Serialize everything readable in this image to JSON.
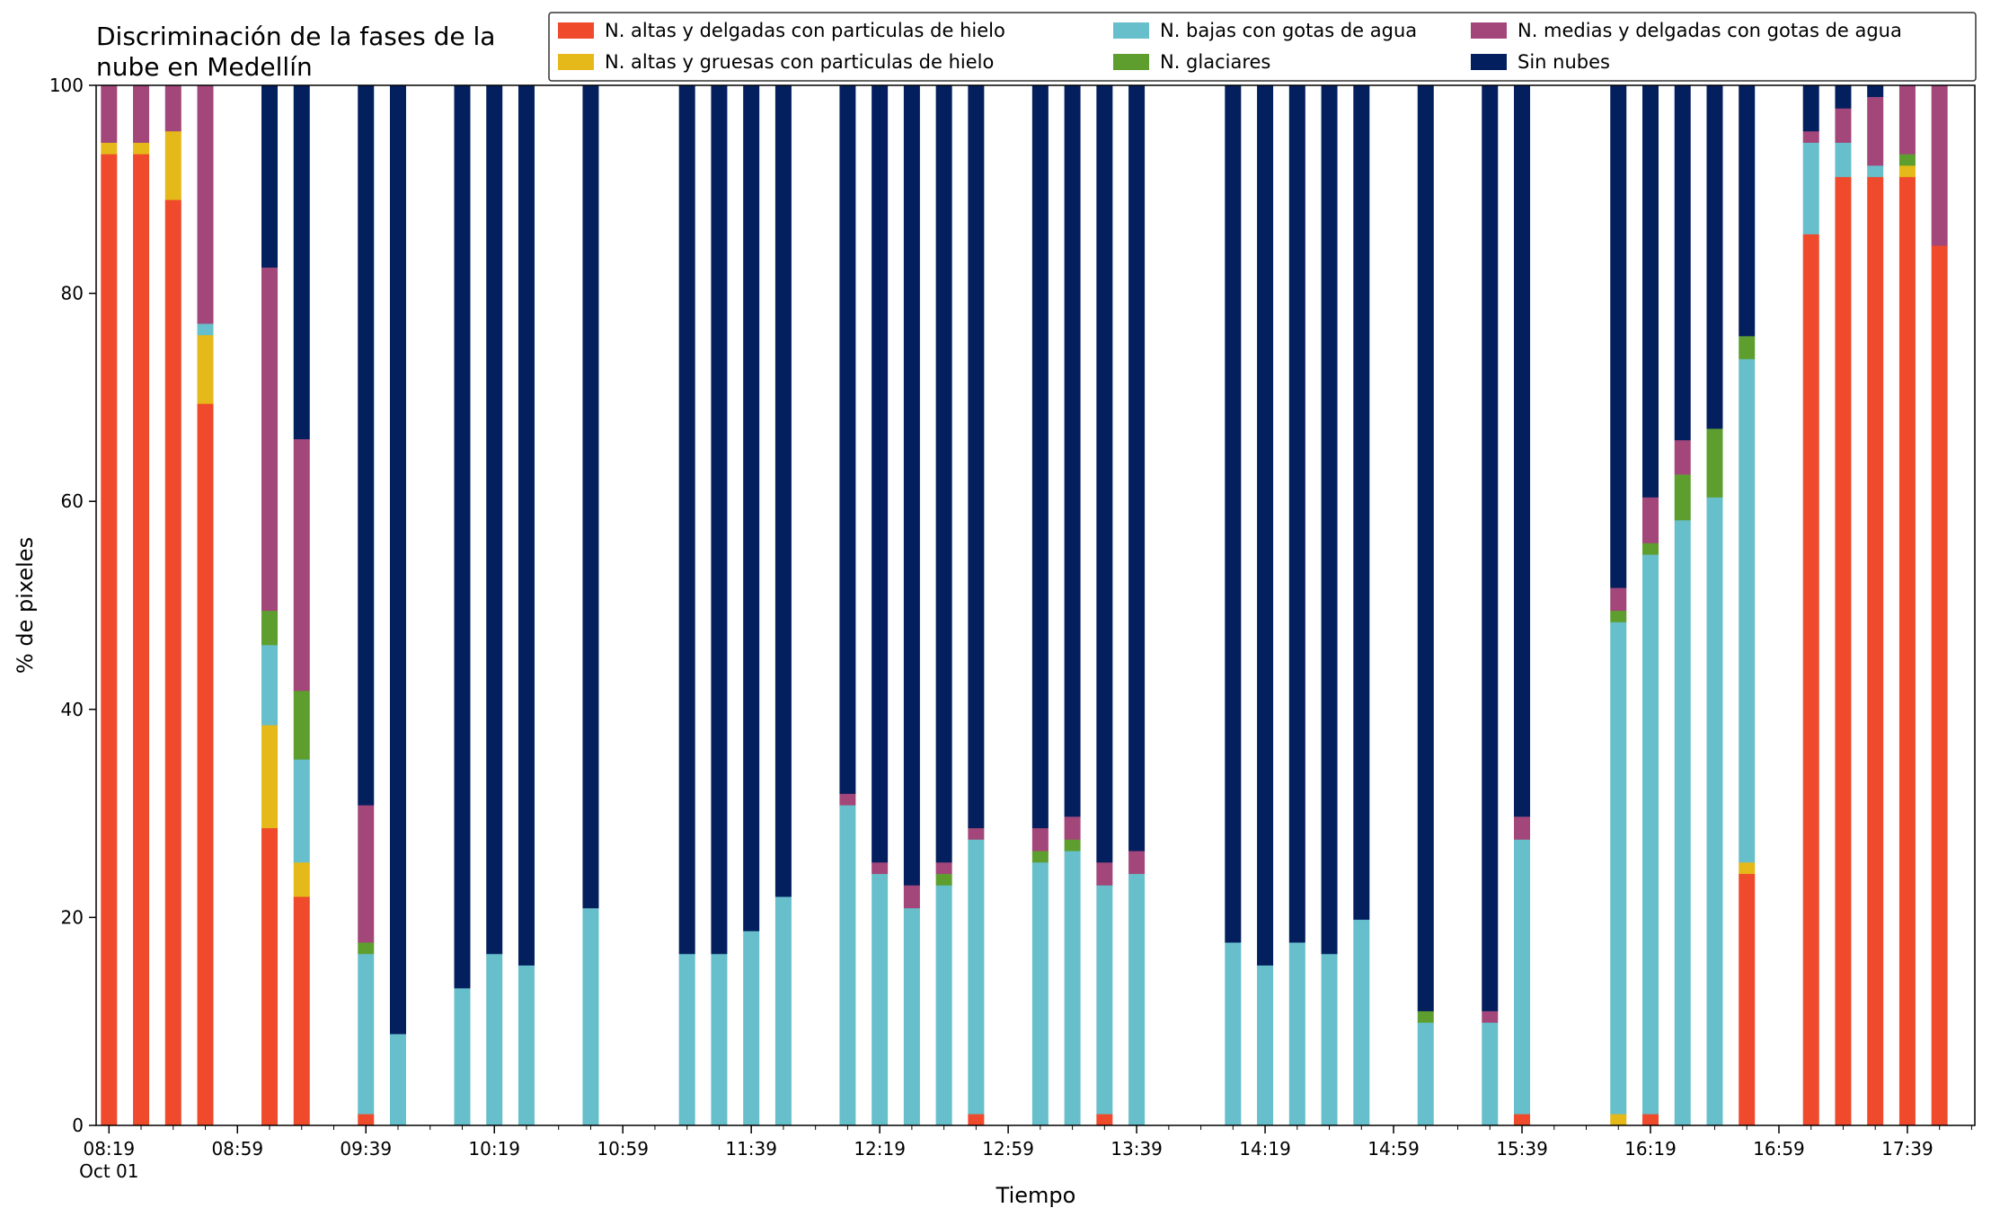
{
  "chart_data": {
    "type": "bar",
    "stacked": true,
    "title": "Discriminación de la fases de la nube en Medellín",
    "title_lines": [
      "Discriminación de la fases de la",
      "nube en Medellín"
    ],
    "xlabel": "Tiempo",
    "ylabel": "% de pixeles",
    "ylim": [
      0,
      100
    ],
    "yticks": [
      0,
      20,
      40,
      60,
      80,
      100
    ],
    "xlim": [
      "08:15",
      "18:00"
    ],
    "xtick_labels": [
      "08:19",
      "08:59",
      "09:39",
      "10:19",
      "10:59",
      "11:39",
      "12:19",
      "12:59",
      "13:39",
      "14:19",
      "14:59",
      "15:39",
      "16:19",
      "16:59",
      "17:39"
    ],
    "xtick_sublabel": "Oct 01",
    "xminor_interval_minutes": 10,
    "legend_position": "top-right",
    "legend_columns": 3,
    "legend_order": [
      "alto_delgado",
      "alto_grueso",
      "bajo_agua",
      "glaciar",
      "medio_agua",
      "sin_nubes"
    ],
    "x": [
      "08:19",
      "08:29",
      "08:39",
      "08:49",
      "09:09",
      "09:19",
      "09:39",
      "09:49",
      "10:09",
      "10:19",
      "10:29",
      "10:49",
      "11:19",
      "11:29",
      "11:39",
      "11:49",
      "12:09",
      "12:19",
      "12:29",
      "12:39",
      "12:49",
      "13:09",
      "13:19",
      "13:29",
      "13:39",
      "14:09",
      "14:19",
      "14:29",
      "14:39",
      "14:49",
      "15:09",
      "15:29",
      "15:39",
      "16:09",
      "16:19",
      "16:29",
      "16:39",
      "16:49",
      "17:09",
      "17:19",
      "17:29",
      "17:39",
      "17:49"
    ],
    "series": [
      {
        "key": "alto_delgado",
        "name": "N. altas y delgadas con particulas de hielo",
        "color": "#ef4a2c",
        "values": [
          93.4,
          93.4,
          89.0,
          69.4,
          28.6,
          22.0,
          1.1,
          0,
          0,
          0,
          0,
          0,
          0,
          0,
          0,
          0,
          0,
          0,
          0,
          0,
          1.1,
          0,
          0,
          1.1,
          0,
          0,
          0,
          0,
          0,
          0,
          0,
          0,
          1.1,
          0,
          1.1,
          0,
          0,
          24.2,
          85.7,
          91.2,
          91.2,
          91.2,
          84.6
        ]
      },
      {
        "key": "alto_grueso",
        "name": "N. altas y gruesas con particulas de hielo",
        "color": "#e4b919",
        "values": [
          1.1,
          1.1,
          6.6,
          6.6,
          9.9,
          3.3,
          0,
          0,
          0,
          0,
          0,
          0,
          0,
          0,
          0,
          0,
          0,
          0,
          0,
          0,
          0,
          0,
          0,
          0,
          0,
          0,
          0,
          0,
          0,
          0,
          0,
          0,
          0,
          1.1,
          0,
          0,
          0,
          1.1,
          0,
          0,
          0,
          1.1,
          0
        ]
      },
      {
        "key": "bajo_agua",
        "name": "N. bajas con gotas de agua",
        "color": "#66bfcb",
        "values": [
          0,
          0,
          0,
          1.1,
          7.7,
          9.9,
          15.4,
          8.8,
          13.2,
          16.5,
          15.4,
          20.9,
          16.5,
          16.5,
          18.7,
          22.0,
          30.8,
          24.2,
          20.9,
          23.1,
          26.4,
          25.3,
          26.4,
          22.0,
          24.2,
          17.6,
          15.4,
          17.6,
          16.5,
          19.8,
          9.9,
          9.9,
          26.4,
          47.3,
          53.8,
          58.2,
          60.4,
          48.4,
          8.8,
          3.3,
          1.1,
          0,
          0
        ]
      },
      {
        "key": "glaciar",
        "name": "N. glaciares",
        "color": "#5d9e2e",
        "values": [
          0,
          0,
          0,
          0,
          3.3,
          6.6,
          1.1,
          0,
          0,
          0,
          0,
          0,
          0,
          0,
          0,
          0,
          0,
          0,
          0,
          1.1,
          0,
          1.1,
          1.1,
          0,
          0,
          0,
          0,
          0,
          0,
          0,
          1.1,
          0,
          0,
          1.1,
          1.1,
          4.4,
          6.6,
          2.2,
          0,
          0,
          0,
          1.1,
          0
        ]
      },
      {
        "key": "medio_agua",
        "name": "N. medias y delgadas con gotas de agua",
        "color": "#a3467a",
        "values": [
          5.5,
          5.5,
          4.4,
          23.1,
          33.0,
          24.2,
          13.2,
          0,
          0,
          0,
          0,
          0,
          0,
          0,
          0,
          0,
          1.1,
          1.1,
          2.2,
          1.1,
          1.1,
          2.2,
          2.2,
          2.2,
          2.2,
          0,
          0,
          0,
          0,
          0,
          0,
          1.1,
          2.2,
          2.2,
          4.4,
          3.3,
          0,
          0,
          1.1,
          3.3,
          6.6,
          6.6,
          15.4
        ]
      },
      {
        "key": "sin_nubes",
        "name": "Sin nubes",
        "color": "#041f5e",
        "values": [
          0,
          0,
          0,
          0,
          17.6,
          34.0,
          69.2,
          91.2,
          86.8,
          83.5,
          84.6,
          79.1,
          83.5,
          83.5,
          81.3,
          78.0,
          68.1,
          74.7,
          76.9,
          74.7,
          71.4,
          71.4,
          70.3,
          74.7,
          73.6,
          82.4,
          84.6,
          82.4,
          83.5,
          80.2,
          89.0,
          89.0,
          70.3,
          48.3,
          39.6,
          34.1,
          33.0,
          24.2,
          4.4,
          2.2,
          1.1,
          0,
          0
        ]
      }
    ]
  }
}
